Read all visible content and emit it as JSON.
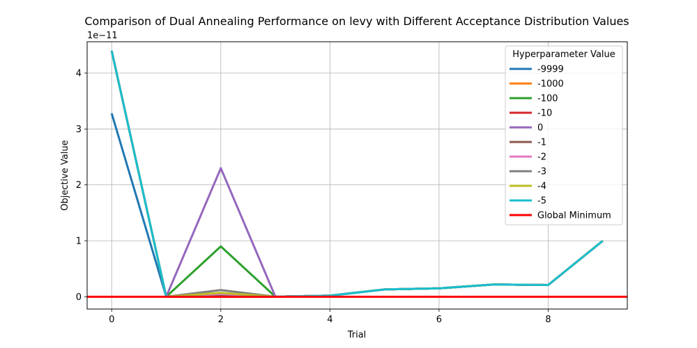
{
  "chart_data": {
    "type": "line",
    "title": "Comparison of Dual Annealing Performance on levy with Different Acceptance Distribution Values",
    "xlabel": "Trial",
    "ylabel": "Objective Value",
    "y_offset_label": "1e−11",
    "xlim": [
      -0.45,
      9.45
    ],
    "ylim": [
      -0.22,
      4.56
    ],
    "x_ticks": [
      0,
      2,
      4,
      6,
      8
    ],
    "y_ticks": [
      0,
      1,
      2,
      3,
      4
    ],
    "grid": true,
    "legend": {
      "title": "Hyperparameter Value",
      "placement": "top-right"
    },
    "x": [
      0,
      1,
      2,
      3,
      4,
      5,
      6,
      7,
      8,
      9
    ],
    "series": [
      {
        "name": "-9999",
        "color": "#1f77b4",
        "values": [
          3.28,
          0.0,
          0.0,
          0.0,
          0.02,
          0.13,
          0.15,
          0.22,
          0.21,
          1.0
        ]
      },
      {
        "name": "-1000",
        "color": "#ff7f0e",
        "values": [
          4.4,
          0.0,
          0.0,
          0.0,
          0.02,
          0.13,
          0.15,
          0.22,
          0.21,
          1.0
        ]
      },
      {
        "name": "-100",
        "color": "#2ca02c",
        "values": [
          4.4,
          0.0,
          0.9,
          0.0,
          0.02,
          0.13,
          0.15,
          0.22,
          0.21,
          1.0
        ]
      },
      {
        "name": "-10",
        "color": "#d62728",
        "values": [
          4.4,
          0.0,
          0.0,
          0.0,
          0.02,
          0.13,
          0.15,
          0.22,
          0.21,
          1.0
        ]
      },
      {
        "name": "0",
        "color": "#9467bd",
        "values": [
          4.4,
          0.0,
          2.3,
          0.0,
          0.02,
          0.13,
          0.15,
          0.22,
          0.21,
          1.0
        ]
      },
      {
        "name": "-1",
        "color": "#8c564b",
        "values": [
          4.4,
          0.0,
          0.03,
          0.0,
          0.02,
          0.13,
          0.15,
          0.22,
          0.21,
          1.0
        ]
      },
      {
        "name": "-2",
        "color": "#e377c2",
        "values": [
          4.4,
          0.0,
          0.05,
          0.0,
          0.02,
          0.13,
          0.15,
          0.22,
          0.21,
          1.0
        ]
      },
      {
        "name": "-3",
        "color": "#7f7f7f",
        "values": [
          4.4,
          0.0,
          0.12,
          0.0,
          0.02,
          0.13,
          0.15,
          0.22,
          0.21,
          1.0
        ]
      },
      {
        "name": "-4",
        "color": "#bcbd22",
        "values": [
          4.4,
          0.0,
          0.07,
          0.0,
          0.02,
          0.13,
          0.15,
          0.22,
          0.21,
          1.0
        ]
      },
      {
        "name": "-5",
        "color": "#17becf",
        "values": [
          4.4,
          0.0,
          0.0,
          0.0,
          0.02,
          0.13,
          0.15,
          0.22,
          0.21,
          1.0
        ]
      }
    ],
    "reference_line": {
      "name": "Global Minimum",
      "color": "#ff0000",
      "value": 0
    }
  }
}
